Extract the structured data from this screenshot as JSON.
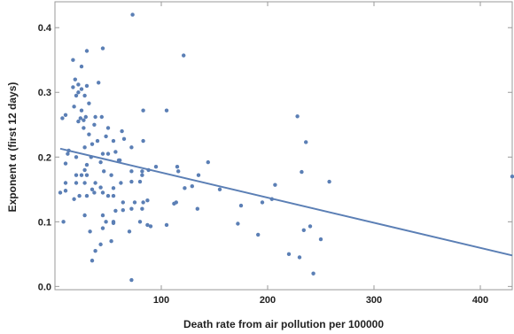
{
  "chart_data": {
    "type": "scatter",
    "xlabel": "Death rate from air pollution per 100000",
    "ylabel": "Exponent α (first 12 days)",
    "xlim": [
      0,
      430
    ],
    "ylim": [
      -0.005,
      0.44
    ],
    "x_ticks": [
      100,
      200,
      300,
      400
    ],
    "y_ticks": [
      0.0,
      0.1,
      0.2,
      0.3,
      0.4
    ],
    "y_tick_labels": [
      "0.0",
      "0.1",
      "0.2",
      "0.3",
      "0.4"
    ],
    "grid": false,
    "point_color": "#5b7fb5",
    "trendline": {
      "x": [
        5,
        430
      ],
      "y": [
        0.213,
        0.048
      ],
      "color": "#5b7fb5"
    },
    "points": [
      [
        73,
        0.42
      ],
      [
        45,
        0.368
      ],
      [
        121,
        0.357
      ],
      [
        30,
        0.364
      ],
      [
        17,
        0.35
      ],
      [
        25,
        0.34
      ],
      [
        19,
        0.32
      ],
      [
        41,
        0.315
      ],
      [
        22,
        0.312
      ],
      [
        30,
        0.31
      ],
      [
        17,
        0.308
      ],
      [
        25,
        0.305
      ],
      [
        22,
        0.3
      ],
      [
        20,
        0.295
      ],
      [
        28,
        0.295
      ],
      [
        32,
        0.283
      ],
      [
        18,
        0.278
      ],
      [
        25,
        0.272
      ],
      [
        83,
        0.272
      ],
      [
        105,
        0.272
      ],
      [
        10,
        0.265
      ],
      [
        7,
        0.26
      ],
      [
        24,
        0.26
      ],
      [
        29,
        0.262
      ],
      [
        44,
        0.262
      ],
      [
        38,
        0.262
      ],
      [
        37,
        0.25
      ],
      [
        27,
        0.257
      ],
      [
        22,
        0.255
      ],
      [
        50,
        0.245
      ],
      [
        27,
        0.245
      ],
      [
        32,
        0.235
      ],
      [
        63,
        0.24
      ],
      [
        48,
        0.232
      ],
      [
        55,
        0.225
      ],
      [
        40,
        0.225
      ],
      [
        65,
        0.228
      ],
      [
        83,
        0.225
      ],
      [
        35,
        0.22
      ],
      [
        72,
        0.215
      ],
      [
        57,
        0.208
      ],
      [
        45,
        0.205
      ],
      [
        50,
        0.205
      ],
      [
        12,
        0.205
      ],
      [
        13,
        0.21
      ],
      [
        28,
        0.215
      ],
      [
        20,
        0.2
      ],
      [
        34,
        0.2
      ],
      [
        43,
        0.192
      ],
      [
        60,
        0.195
      ],
      [
        61,
        0.195
      ],
      [
        30,
        0.188
      ],
      [
        10,
        0.19
      ],
      [
        28,
        0.18
      ],
      [
        46,
        0.178
      ],
      [
        72,
        0.178
      ],
      [
        82,
        0.178
      ],
      [
        88,
        0.18
      ],
      [
        95,
        0.185
      ],
      [
        116,
        0.178
      ],
      [
        144,
        0.192
      ],
      [
        135,
        0.172
      ],
      [
        115,
        0.185
      ],
      [
        82,
        0.172
      ],
      [
        53,
        0.172
      ],
      [
        30,
        0.172
      ],
      [
        25,
        0.172
      ],
      [
        20,
        0.172
      ],
      [
        10,
        0.16
      ],
      [
        20,
        0.16
      ],
      [
        28,
        0.16
      ],
      [
        38,
        0.16
      ],
      [
        35,
        0.15
      ],
      [
        43,
        0.153
      ],
      [
        55,
        0.152
      ],
      [
        62,
        0.16
      ],
      [
        72,
        0.162
      ],
      [
        80,
        0.162
      ],
      [
        122,
        0.152
      ],
      [
        129,
        0.155
      ],
      [
        155,
        0.15
      ],
      [
        207,
        0.157
      ],
      [
        232,
        0.177
      ],
      [
        258,
        0.162
      ],
      [
        228,
        0.263
      ],
      [
        236,
        0.223
      ],
      [
        10,
        0.148
      ],
      [
        5,
        0.145
      ],
      [
        18,
        0.135
      ],
      [
        23,
        0.14
      ],
      [
        30,
        0.14
      ],
      [
        37,
        0.145
      ],
      [
        45,
        0.145
      ],
      [
        50,
        0.14
      ],
      [
        55,
        0.14
      ],
      [
        64,
        0.13
      ],
      [
        75,
        0.13
      ],
      [
        83,
        0.13
      ],
      [
        87,
        0.133
      ],
      [
        114,
        0.13
      ],
      [
        112,
        0.128
      ],
      [
        134,
        0.12
      ],
      [
        175,
        0.125
      ],
      [
        195,
        0.13
      ],
      [
        204,
        0.135
      ],
      [
        82,
        0.12
      ],
      [
        72,
        0.12
      ],
      [
        64,
        0.118
      ],
      [
        57,
        0.117
      ],
      [
        45,
        0.11
      ],
      [
        28,
        0.11
      ],
      [
        48,
        0.1
      ],
      [
        55,
        0.1
      ],
      [
        80,
        0.1
      ],
      [
        87,
        0.095
      ],
      [
        90,
        0.093
      ],
      [
        105,
        0.095
      ],
      [
        8,
        0.1
      ],
      [
        33,
        0.085
      ],
      [
        45,
        0.09
      ],
      [
        55,
        0.098
      ],
      [
        70,
        0.085
      ],
      [
        172,
        0.097
      ],
      [
        191,
        0.08
      ],
      [
        220,
        0.05
      ],
      [
        230,
        0.045
      ],
      [
        234,
        0.087
      ],
      [
        240,
        0.093
      ],
      [
        250,
        0.073
      ],
      [
        43,
        0.065
      ],
      [
        38,
        0.055
      ],
      [
        35,
        0.04
      ],
      [
        53,
        0.07
      ],
      [
        72,
        0.01
      ],
      [
        243,
        0.02
      ],
      [
        430,
        0.17
      ]
    ]
  }
}
